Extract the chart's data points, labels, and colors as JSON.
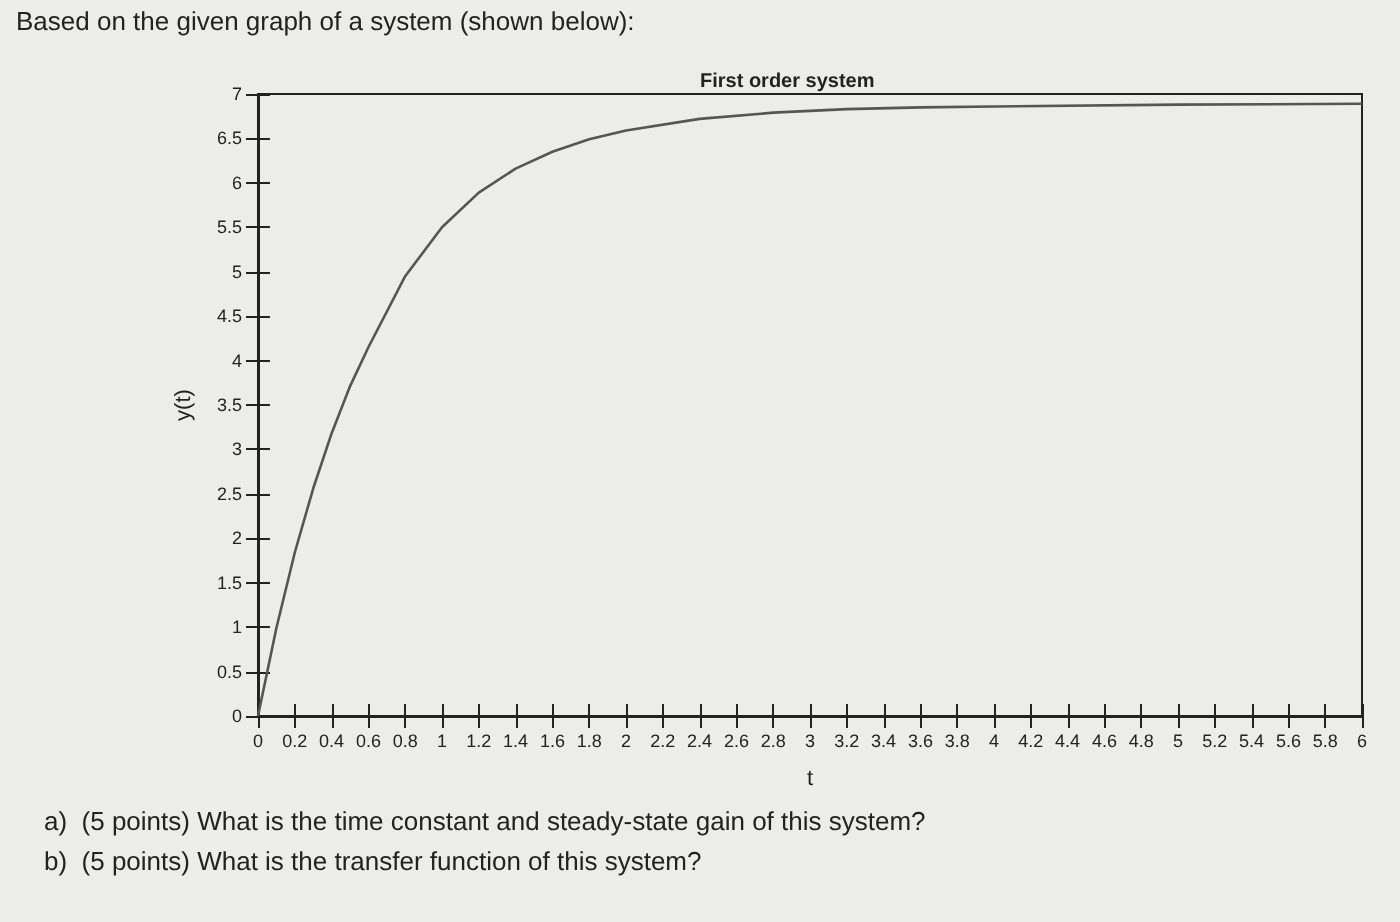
{
  "chart_data": {
    "type": "line",
    "title": "First order system",
    "xlabel": "t",
    "ylabel": "y(t)",
    "annotations": [
      "Based on the given graph of a system (shown below):",
      "a)  (5 points) What is the time constant and steady-state gain of this system?",
      "b)  (5 points) What is the transfer function of this system?"
    ],
    "x": [
      0,
      0.1,
      0.2,
      0.3,
      0.4,
      0.5,
      0.6,
      0.8,
      1,
      1.2,
      1.4,
      1.6,
      1.8,
      2,
      2.4,
      2.8,
      3.2,
      3.6,
      4,
      5,
      6
    ],
    "series": [
      {
        "color": "#555555",
        "values": [
          0,
          0.99,
          1.84,
          2.56,
          3.18,
          3.71,
          4.15,
          4.95,
          5.5,
          5.89,
          6.16,
          6.35,
          6.49,
          6.59,
          6.72,
          6.79,
          6.83,
          6.85,
          6.86,
          6.88,
          6.89
        ]
      }
    ],
    "xlim": [
      0,
      6
    ],
    "ylim": [
      0,
      7
    ],
    "xticks": [
      0,
      0.2,
      0.4,
      0.6,
      0.8,
      1,
      1.2,
      1.4,
      1.6,
      1.8,
      2,
      2.2,
      2.4,
      2.6,
      2.8,
      3,
      3.2,
      3.4,
      3.6,
      3.8,
      4,
      4.2,
      4.4,
      4.6,
      4.8,
      5,
      5.2,
      5.4,
      5.6,
      5.8,
      6
    ],
    "yticks": [
      0,
      0.5,
      1,
      1.5,
      2,
      2.5,
      3,
      3.5,
      4,
      4.5,
      5,
      5.5,
      6,
      6.5,
      7
    ],
    "grid": false,
    "marker": "none",
    "line_style": "solid"
  }
}
